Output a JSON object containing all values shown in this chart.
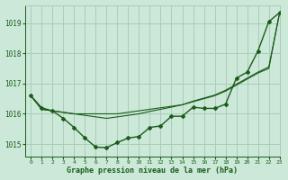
{
  "title": "Graphe pression niveau de la mer (hPa)",
  "bg_color": "#cce8d8",
  "grid_color": "#aaccb8",
  "line_color": "#1a5c1a",
  "marker_color": "#1a5c1a",
  "xlim": [
    -0.5,
    23
  ],
  "ylim": [
    1014.6,
    1019.6
  ],
  "yticks": [
    1015,
    1016,
    1017,
    1018,
    1019
  ],
  "xticks": [
    0,
    1,
    2,
    3,
    4,
    5,
    6,
    7,
    8,
    9,
    10,
    11,
    12,
    13,
    14,
    15,
    16,
    17,
    18,
    19,
    20,
    21,
    22,
    23
  ],
  "series": [
    {
      "y": [
        1016.6,
        1016.2,
        1016.1,
        1015.85,
        1015.55,
        1015.2,
        1014.9,
        1014.88,
        1015.05,
        1015.2,
        1015.25,
        1015.55,
        1015.6,
        1015.92,
        1015.92,
        1016.22,
        1016.18,
        1016.18,
        1016.32,
        1017.18,
        1017.38,
        1018.08,
        1019.05,
        1019.35
      ],
      "lw": 1.0,
      "marker": true
    },
    {
      "y": [
        1016.6,
        1016.15,
        1016.1,
        1016.05,
        1016.0,
        1016.0,
        1016.0,
        1016.0,
        1016.0,
        1016.05,
        1016.1,
        1016.15,
        1016.2,
        1016.25,
        1016.3,
        1016.4,
        1016.5,
        1016.6,
        1016.75,
        1016.95,
        1017.15,
        1017.35,
        1017.5,
        1019.35
      ],
      "lw": 0.8,
      "marker": false
    },
    {
      "y": [
        1016.6,
        1016.15,
        1016.1,
        1016.05,
        1016.0,
        1015.95,
        1015.9,
        1015.85,
        1015.9,
        1015.95,
        1016.0,
        1016.08,
        1016.15,
        1016.22,
        1016.3,
        1016.42,
        1016.52,
        1016.62,
        1016.78,
        1016.98,
        1017.18,
        1017.38,
        1017.55,
        1019.35
      ],
      "lw": 0.8,
      "marker": false
    }
  ],
  "figsize": [
    3.2,
    2.0
  ],
  "dpi": 100
}
